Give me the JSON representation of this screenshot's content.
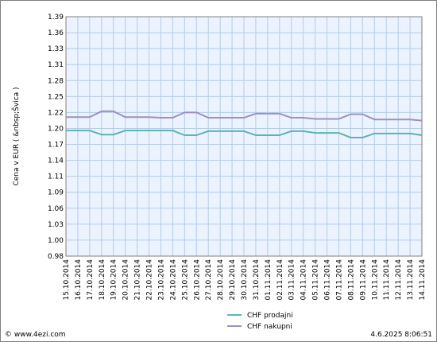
{
  "chart_data": {
    "type": "line",
    "ylabel": "Cena v EUR  ( &nbsp;Švica )",
    "ylim": [
      0.98,
      1.39
    ],
    "yticks": [
      "0.98",
      "1.00",
      "1.03",
      "1.06",
      "1.09",
      "1.11",
      "1.14",
      "1.17",
      "1.20",
      "1.22",
      "1.25",
      "1.28",
      "1.31",
      "1.33",
      "1.36",
      "1.39"
    ],
    "x": [
      "15.10.2014",
      "16.10.2014",
      "17.10.2014",
      "18.10.2014",
      "19.10.2014",
      "20.10.2014",
      "21.10.2014",
      "22.10.2014",
      "23.10.2014",
      "24.10.2014",
      "25.10.2014",
      "26.10.2014",
      "27.10.2014",
      "28.10.2014",
      "29.10.2014",
      "30.10.2014",
      "31.10.2014",
      "01.11.2014",
      "02.11.2014",
      "03.11.2014",
      "04.11.2014",
      "05.11.2014",
      "06.11.2014",
      "07.11.2014",
      "08.11.2014",
      "09.11.2014",
      "10.11.2014",
      "11.11.2014",
      "12.11.2014",
      "13.11.2014",
      "14.11.2014"
    ],
    "series": [
      {
        "name": "CHF prodajni",
        "color": "#5fb3b3",
        "values": [
          1.195,
          1.195,
          1.195,
          1.188,
          1.188,
          1.195,
          1.195,
          1.195,
          1.195,
          1.195,
          1.187,
          1.187,
          1.194,
          1.194,
          1.194,
          1.194,
          1.187,
          1.187,
          1.187,
          1.194,
          1.194,
          1.191,
          1.191,
          1.191,
          1.183,
          1.183,
          1.19,
          1.19,
          1.19,
          1.19,
          1.187
        ]
      },
      {
        "name": "CHF nakupni",
        "color": "#9f8fc4",
        "values": [
          1.218,
          1.218,
          1.218,
          1.228,
          1.228,
          1.218,
          1.218,
          1.218,
          1.217,
          1.217,
          1.226,
          1.226,
          1.217,
          1.217,
          1.217,
          1.217,
          1.224,
          1.224,
          1.224,
          1.217,
          1.217,
          1.215,
          1.215,
          1.215,
          1.223,
          1.223,
          1.214,
          1.214,
          1.214,
          1.214,
          1.212
        ]
      }
    ],
    "grid": true,
    "legend": "bottom-center"
  },
  "footer": {
    "source": "© www.4ezi.com",
    "timestamp": "4.6.2025  8:06:51"
  },
  "colors": {
    "plot_bg": "#eaf3ff",
    "grid": "#b5cce8",
    "axis": "#7f7f7f"
  }
}
